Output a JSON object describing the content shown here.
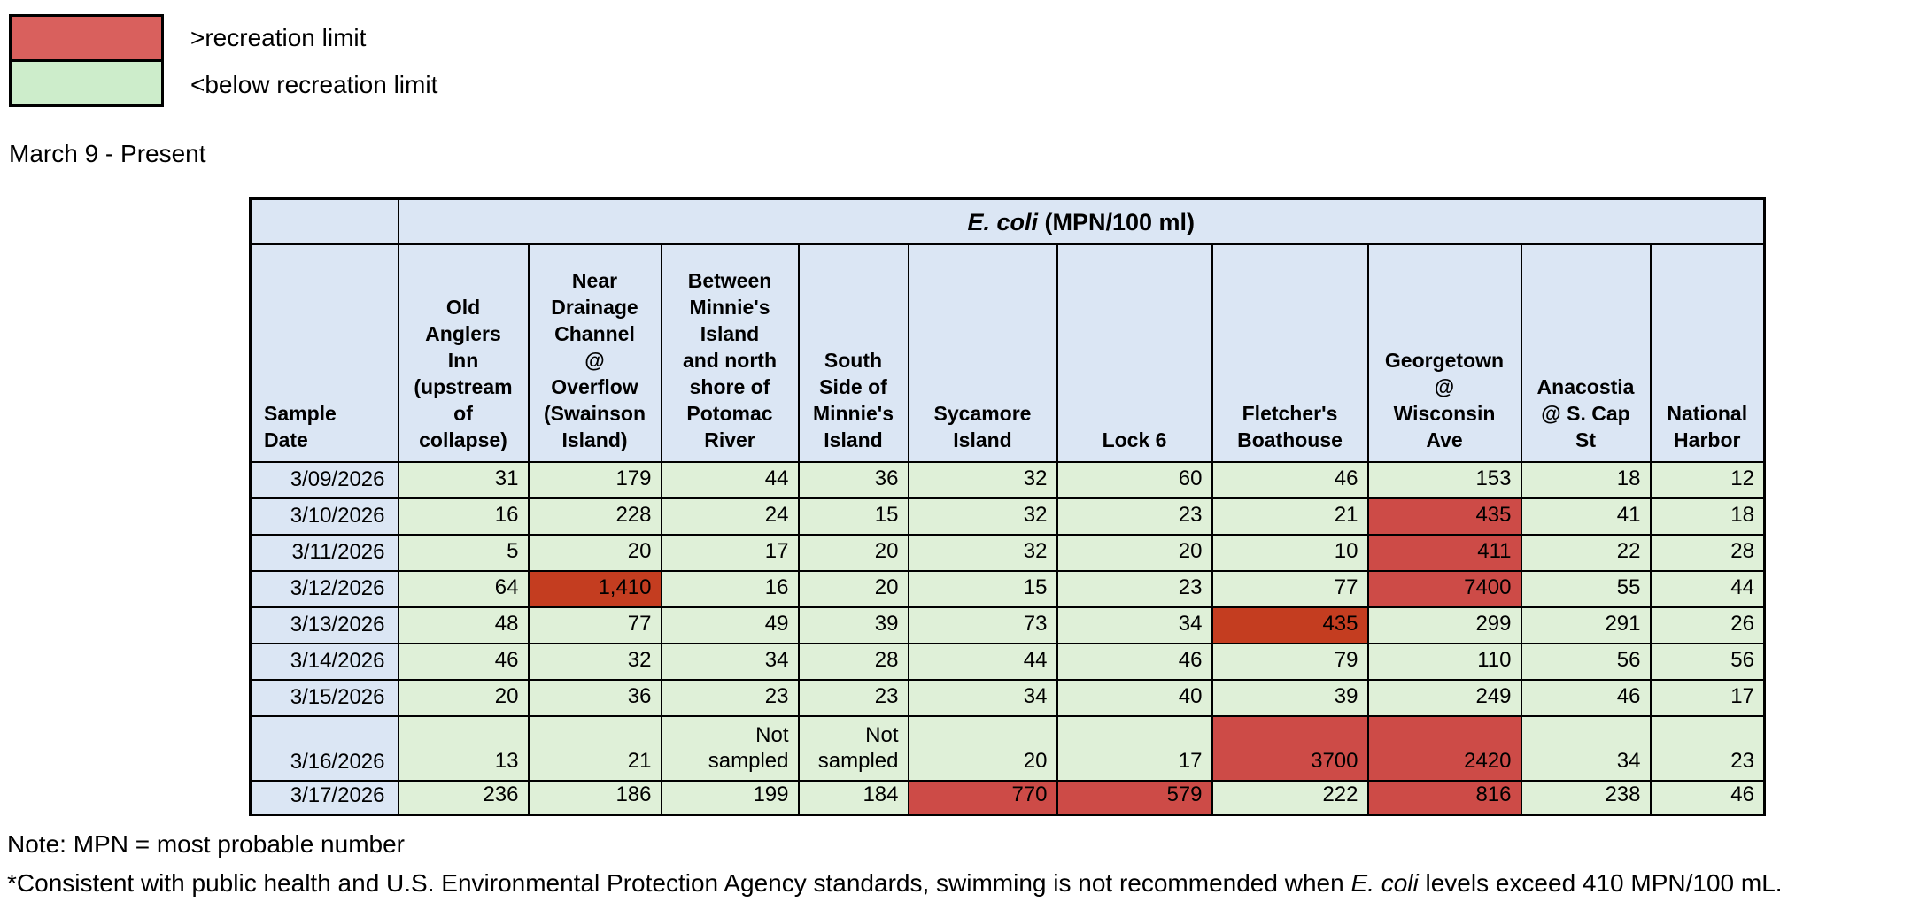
{
  "legend": {
    "over_label": ">recreation limit",
    "below_label": "<below recreation limit"
  },
  "title": "March 9 - Present",
  "chart_data": {
    "type": "table",
    "group_header_italic": "E. coli",
    "group_header_rest": " (MPN/100 ml)",
    "corner_header": "Sample\nDate",
    "columns": [
      "Old\nAnglers\nInn\n(upstream\nof\ncollapse)",
      "Near\nDrainage\nChannel\n@\nOverflow\n(Swainson\nIsland)",
      "Between\nMinnie's\nIsland\nand north\nshore of\nPotomac\nRiver",
      "South\nSide of\nMinnie's\nIsland",
      "Sycamore\nIsland",
      "Lock 6",
      "Fletcher's\nBoathouse",
      "Georgetown\n@\nWisconsin\nAve",
      "Anacostia\n@ S. Cap\nSt",
      "National\nHarbor"
    ],
    "rows": [
      {
        "date": "3/09/2026",
        "values": [
          "31",
          "179",
          "44",
          "36",
          "32",
          "60",
          "46",
          "153",
          "18",
          "12"
        ],
        "status": [
          "g",
          "g",
          "g",
          "g",
          "g",
          "g",
          "g",
          "g",
          "g",
          "g"
        ]
      },
      {
        "date": "3/10/2026",
        "values": [
          "16",
          "228",
          "24",
          "15",
          "32",
          "23",
          "21",
          "435",
          "41",
          "18"
        ],
        "status": [
          "g",
          "g",
          "g",
          "g",
          "g",
          "g",
          "g",
          "r",
          "g",
          "g"
        ]
      },
      {
        "date": "3/11/2026",
        "values": [
          "5",
          "20",
          "17",
          "20",
          "32",
          "20",
          "10",
          "411",
          "22",
          "28"
        ],
        "status": [
          "g",
          "g",
          "g",
          "g",
          "g",
          "g",
          "g",
          "r",
          "g",
          "g"
        ]
      },
      {
        "date": "3/12/2026",
        "values": [
          "64",
          "1,410",
          "16",
          "20",
          "15",
          "23",
          "77",
          "7400",
          "55",
          "44"
        ],
        "status": [
          "g",
          "d",
          "g",
          "g",
          "g",
          "g",
          "g",
          "r",
          "g",
          "g"
        ]
      },
      {
        "date": "3/13/2026",
        "values": [
          "48",
          "77",
          "49",
          "39",
          "73",
          "34",
          "435",
          "299",
          "291",
          "26"
        ],
        "status": [
          "g",
          "g",
          "g",
          "g",
          "g",
          "g",
          "d",
          "g",
          "g",
          "g"
        ]
      },
      {
        "date": "3/14/2026",
        "values": [
          "46",
          "32",
          "34",
          "28",
          "44",
          "46",
          "79",
          "110",
          "56",
          "56"
        ],
        "status": [
          "g",
          "g",
          "g",
          "g",
          "g",
          "g",
          "g",
          "g",
          "g",
          "g"
        ]
      },
      {
        "date": "3/15/2026",
        "values": [
          "20",
          "36",
          "23",
          "23",
          "34",
          "40",
          "39",
          "249",
          "46",
          "17"
        ],
        "status": [
          "g",
          "g",
          "g",
          "g",
          "g",
          "g",
          "g",
          "g",
          "g",
          "g"
        ]
      },
      {
        "date": "3/16/2026",
        "values": [
          "13",
          "21",
          "Not\nsampled",
          "Not\nsampled",
          "20",
          "17",
          "3700",
          "2420",
          "34",
          "23"
        ],
        "status": [
          "g",
          "g",
          "g",
          "g",
          "g",
          "g",
          "r",
          "r",
          "g",
          "g"
        ]
      },
      {
        "date": "3/17/2026",
        "values": [
          "236",
          "186",
          "199",
          "184",
          "770",
          "579",
          "222",
          "816",
          "238",
          "46"
        ],
        "status": [
          "g",
          "g",
          "g",
          "g",
          "r",
          "r",
          "g",
          "r",
          "g",
          "g"
        ]
      }
    ],
    "status_meaning": {
      "g": "below recreation limit",
      "r": "over recreation limit",
      "d": "over recreation limit"
    }
  },
  "notes": {
    "note1": "Note: MPN = most probable number",
    "note2_prefix": "*Consistent with public health and U.S. Environmental Protection Agency standards, swimming is not recommended when ",
    "note2_italic": "E. coli",
    "note2_suffix": " levels exceed 410 MPN/100 mL."
  },
  "colors": {
    "header_blue": "#dbe6f4",
    "cell_green": "#dff0d8",
    "legend_green": "#cdedcb",
    "legend_red": "#d9605d",
    "over_red": "#cd4b47",
    "over_dark_red": "#c43d20",
    "border_black": "#000000"
  }
}
